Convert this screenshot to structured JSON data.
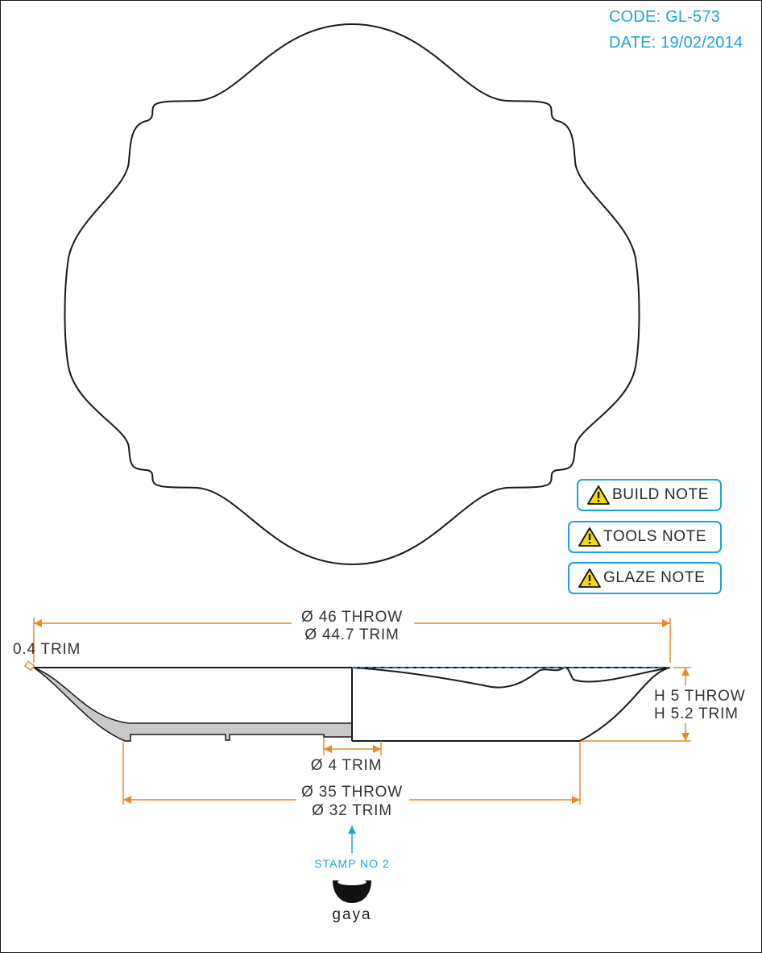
{
  "header": {
    "code": "CODE: GL-573",
    "date": "DATE: 19/02/2014"
  },
  "notes": [
    {
      "label": "BUILD NOTE",
      "icon": "warning-icon"
    },
    {
      "label": "TOOLS NOTE",
      "icon": "warning-icon"
    },
    {
      "label": "GLAZE NOTE",
      "icon": "warning-icon"
    }
  ],
  "dimensions": {
    "outer_throw": "Ø 46 THROW",
    "outer_trim": "Ø 44.7 TRIM",
    "rim_trim": "0.4 TRIM",
    "height_throw": "H 5 THROW",
    "height_trim": "H 5.2 TRIM",
    "foot_trim": "Ø 4 TRIM",
    "base_throw": "Ø 35 THROW",
    "base_trim": "Ø 32 TRIM"
  },
  "stamp": {
    "label": "STAMP NO 2",
    "logo_text": "gaya"
  },
  "colors": {
    "accent": "#1ba3dd",
    "dimension": "#e8892a",
    "outline": "#1a1a1a",
    "section_fill": "#c9c9c9"
  }
}
